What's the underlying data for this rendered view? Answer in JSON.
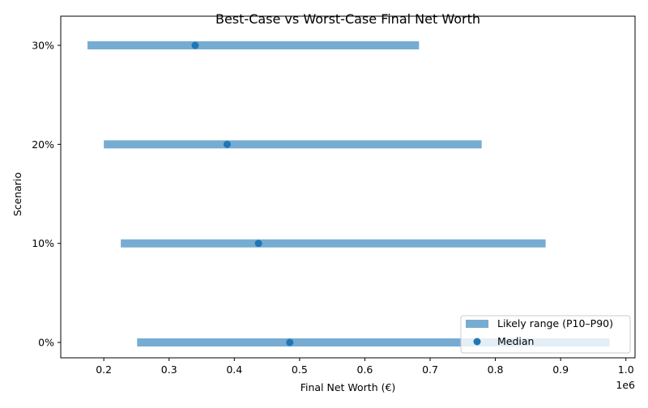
{
  "chart_data": {
    "type": "range-dot",
    "title": "Best-Case vs Worst-Case Final Net Worth",
    "xlabel": "Final Net Worth (€)",
    "ylabel": "Scenario",
    "x_offset_label": "1e6",
    "categories": [
      "0%",
      "10%",
      "20%",
      "30%"
    ],
    "series": [
      {
        "name": "Likely range (P10–P90)",
        "type": "range",
        "low": [
          251000,
          226000,
          200000,
          175000
        ],
        "high": [
          975000,
          877000,
          779000,
          683000
        ],
        "color": "#76acd2"
      },
      {
        "name": "Median",
        "type": "scatter",
        "values": [
          485000,
          437000,
          389000,
          340000
        ],
        "color": "#1f77b4"
      }
    ],
    "xlim": [
      134000,
      1014000
    ],
    "xticks": [
      0.2,
      0.3,
      0.4,
      0.5,
      0.6,
      0.7,
      0.8,
      0.9,
      1.0
    ],
    "xtick_labels": [
      "0.2",
      "0.3",
      "0.4",
      "0.5",
      "0.6",
      "0.7",
      "0.8",
      "0.9",
      "1.0"
    ],
    "grid": false,
    "legend_position": "lower-right"
  }
}
